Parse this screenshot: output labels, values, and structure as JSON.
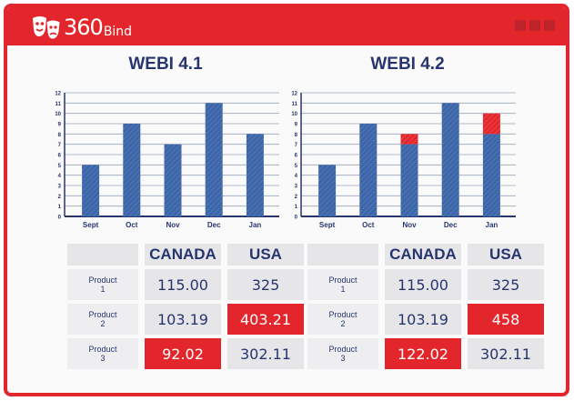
{
  "app": {
    "logo_number": "360",
    "logo_word": "Bind",
    "accent": "#e3262c",
    "navy": "#27356f",
    "bar_color": "#3d66a8"
  },
  "panels": [
    {
      "title": "WEBI 4.1",
      "table": {
        "columns": [
          "CANADA",
          "USA"
        ],
        "rows": [
          {
            "label_line1": "Product",
            "label_line2": "1",
            "values": [
              "115.00",
              "325"
            ],
            "highlight": [
              false,
              false
            ]
          },
          {
            "label_line1": "Product",
            "label_line2": "2",
            "values": [
              "103.19",
              "403.21"
            ],
            "highlight": [
              false,
              true
            ]
          },
          {
            "label_line1": "Product",
            "label_line2": "3",
            "values": [
              "92.02",
              "302.11"
            ],
            "highlight": [
              true,
              false
            ]
          }
        ]
      }
    },
    {
      "title": "WEBI 4.2",
      "table": {
        "columns": [
          "CANADA",
          "USA"
        ],
        "rows": [
          {
            "label_line1": "Product",
            "label_line2": "1",
            "values": [
              "115.00",
              "325"
            ],
            "highlight": [
              false,
              false
            ]
          },
          {
            "label_line1": "Product",
            "label_line2": "2",
            "values": [
              "103.19",
              "458"
            ],
            "highlight": [
              false,
              true
            ]
          },
          {
            "label_line1": "Product",
            "label_line2": "3",
            "values": [
              "122.02",
              "302.11"
            ],
            "highlight": [
              true,
              false
            ]
          }
        ]
      }
    }
  ],
  "chart_data": [
    {
      "type": "bar",
      "categories": [
        "Sept",
        "Oct",
        "Nov",
        "Dec",
        "Jan"
      ],
      "values": [
        5,
        9,
        7,
        11,
        8
      ],
      "ylim": [
        0,
        12
      ],
      "yticks": [
        "0",
        "1",
        "2",
        "3",
        "4",
        "5",
        "6",
        "7",
        "8",
        "9",
        "10",
        "11",
        "12"
      ],
      "grid": true
    },
    {
      "type": "bar",
      "categories": [
        "Sept",
        "Oct",
        "Nov",
        "Dec",
        "Jan"
      ],
      "values": [
        5,
        9,
        7,
        11,
        8
      ],
      "increase": [
        0,
        0,
        1,
        0,
        2
      ],
      "increase_color": "#e3262c",
      "ylim": [
        0,
        12
      ],
      "yticks": [
        "0",
        "1",
        "2",
        "3",
        "4",
        "5",
        "6",
        "7",
        "8",
        "9",
        "10",
        "11",
        "12"
      ],
      "grid": true
    }
  ]
}
